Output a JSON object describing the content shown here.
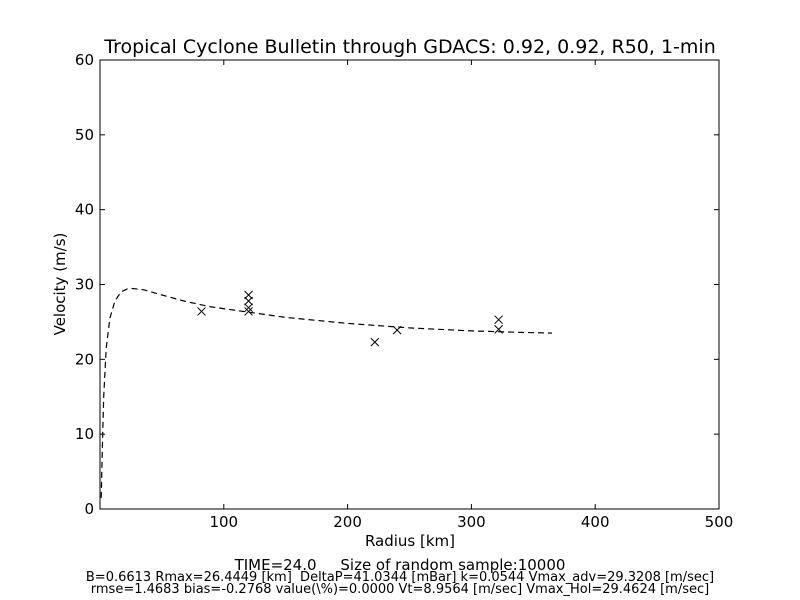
{
  "chart_data": {
    "type": "scatter",
    "title": "Tropical Cyclone Bulletin through GDACS: 0.92, 0.92, R50, 1-min",
    "xlabel": "Radius [km]",
    "ylabel": "Velocity (m/s)",
    "xlim": [
      0,
      500
    ],
    "ylim": [
      0,
      60
    ],
    "xticks": [
      100,
      200,
      300,
      400,
      500
    ],
    "yticks": [
      0,
      10,
      20,
      30,
      40,
      50,
      60
    ],
    "grid": false,
    "series": [
      {
        "marker": "x",
        "points": [
          {
            "x": 82,
            "y": 26.4
          },
          {
            "x": 120,
            "y": 28.6
          },
          {
            "x": 120,
            "y": 27.8
          },
          {
            "x": 120,
            "y": 26.9
          },
          {
            "x": 120,
            "y": 26.4
          },
          {
            "x": 222,
            "y": 22.3
          },
          {
            "x": 240,
            "y": 23.9
          },
          {
            "x": 322,
            "y": 25.3
          },
          {
            "x": 322,
            "y": 24.0
          }
        ]
      },
      {
        "line": "dashed",
        "points": [
          {
            "x": 1,
            "y": 1.5
          },
          {
            "x": 2,
            "y": 9
          },
          {
            "x": 3,
            "y": 15
          },
          {
            "x": 5,
            "y": 21.5
          },
          {
            "x": 8,
            "y": 25.5
          },
          {
            "x": 12,
            "y": 27.8
          },
          {
            "x": 17,
            "y": 29.0
          },
          {
            "x": 22,
            "y": 29.4
          },
          {
            "x": 26,
            "y": 29.46
          },
          {
            "x": 35,
            "y": 29.3
          },
          {
            "x": 50,
            "y": 28.6
          },
          {
            "x": 70,
            "y": 27.7
          },
          {
            "x": 90,
            "y": 27.0
          },
          {
            "x": 120,
            "y": 26.3
          },
          {
            "x": 150,
            "y": 25.6
          },
          {
            "x": 200,
            "y": 24.8
          },
          {
            "x": 250,
            "y": 24.2
          },
          {
            "x": 300,
            "y": 23.8
          },
          {
            "x": 340,
            "y": 23.6
          },
          {
            "x": 365,
            "y": 23.5
          }
        ]
      }
    ]
  },
  "footer": {
    "time_line": "TIME=24.0     Size of random sample:10000",
    "params_line1": "B=0.6613 Rmax=26.4449 [km]  DeltaP=41.0344 [mBar] k=0.0544 Vmax_adv=29.3208 [m/sec]",
    "params_line2": "rmse=1.4683 bias=-0.2768 value(\\%)=0.0000 Vt=8.9564 [m/sec] Vmax_Hol=29.4624 [m/sec]"
  }
}
